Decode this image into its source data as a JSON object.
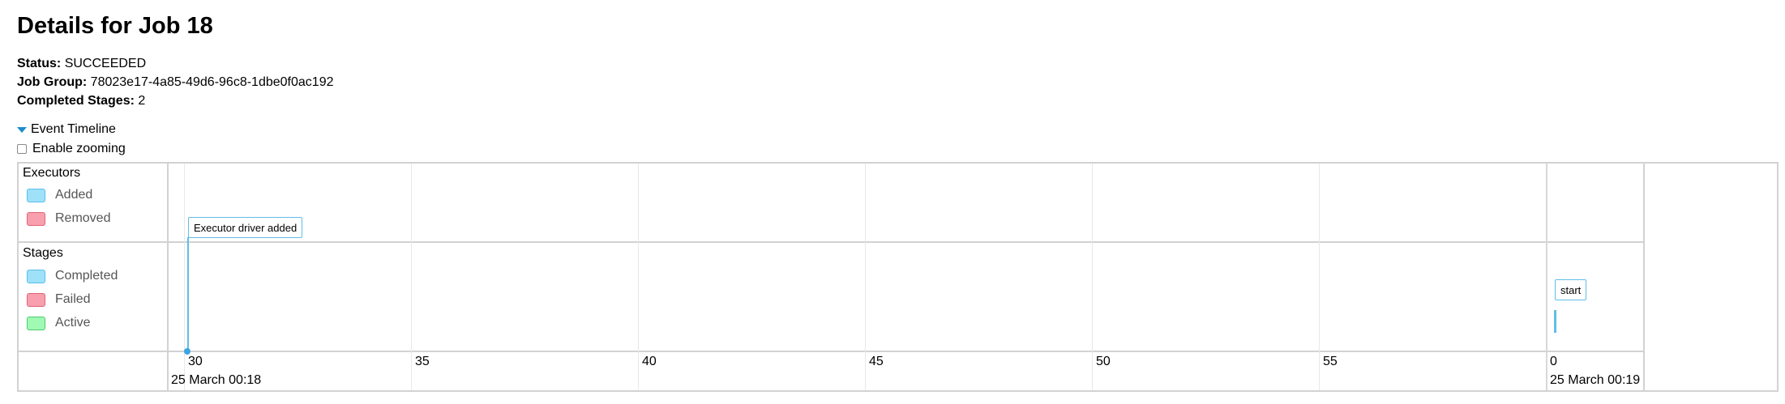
{
  "page": {
    "title": "Details for Job 18"
  },
  "details": {
    "status_label": "Status:",
    "status_value": "SUCCEEDED",
    "job_group_label": "Job Group:",
    "job_group_value": "78023e17-4a85-49d6-96c8-1dbe0f0ac192",
    "completed_stages_label": "Completed Stages:",
    "completed_stages_value": "2"
  },
  "timeline": {
    "toggle_label": "Event Timeline",
    "toggle_expanded": true,
    "zoom_label": "Enable zooming",
    "zoom_checked": false,
    "groups": {
      "executors": {
        "title": "Executors",
        "legend": [
          {
            "label": "Added",
            "fill": "#a0e1fa",
            "stroke": "#54c0e8"
          },
          {
            "label": "Removed",
            "fill": "#f8a0ad",
            "stroke": "#e3627a"
          }
        ]
      },
      "stages": {
        "title": "Stages",
        "legend": [
          {
            "label": "Completed",
            "fill": "#a0e1fa",
            "stroke": "#54c0e8"
          },
          {
            "label": "Failed",
            "fill": "#f8a0ad",
            "stroke": "#e3627a"
          },
          {
            "label": "Active",
            "fill": "#a0fab3",
            "stroke": "#4ccc6b"
          }
        ]
      }
    },
    "axis": {
      "minor_ticks": [
        "30",
        "35",
        "40",
        "45",
        "50",
        "55",
        "0"
      ],
      "major_labels": [
        "25 March 00:18",
        "25 March 00:19"
      ]
    },
    "events": {
      "executor_added": "Executor driver added",
      "stage": "start"
    },
    "colors": {
      "accent": "#1a8cc8",
      "event_line": "#61bde8",
      "grid": "#d2d2d2"
    }
  }
}
